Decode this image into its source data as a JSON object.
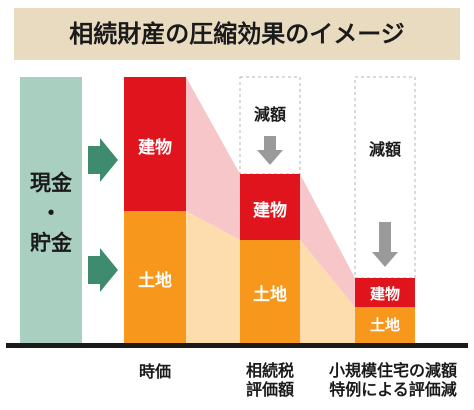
{
  "title": "相続財産の圧縮効果のイメージ",
  "cash_label_line1": "現金",
  "cash_label_line2": "・",
  "cash_label_line3": "貯金",
  "segment_labels": {
    "building": "建物",
    "land": "土地",
    "reduction": "減額"
  },
  "stage_labels": {
    "market": "時価",
    "tax_line1": "相続税",
    "tax_line2": "評価額",
    "special_line1": "小規模住宅の減額",
    "special_line2": "特例による評価減"
  },
  "colors": {
    "cash": "#a9cfc1",
    "arrow_green": "#3f8b6f",
    "building": "#e0141c",
    "land": "#f7981c",
    "building_fade": "#f7c6c8",
    "land_fade": "#fddcae",
    "title_bg": "#e9dbc0",
    "down_arrow": "#9a9a9a",
    "dashed": "#b5b5b5",
    "baseline": "#1a1a1a"
  }
}
